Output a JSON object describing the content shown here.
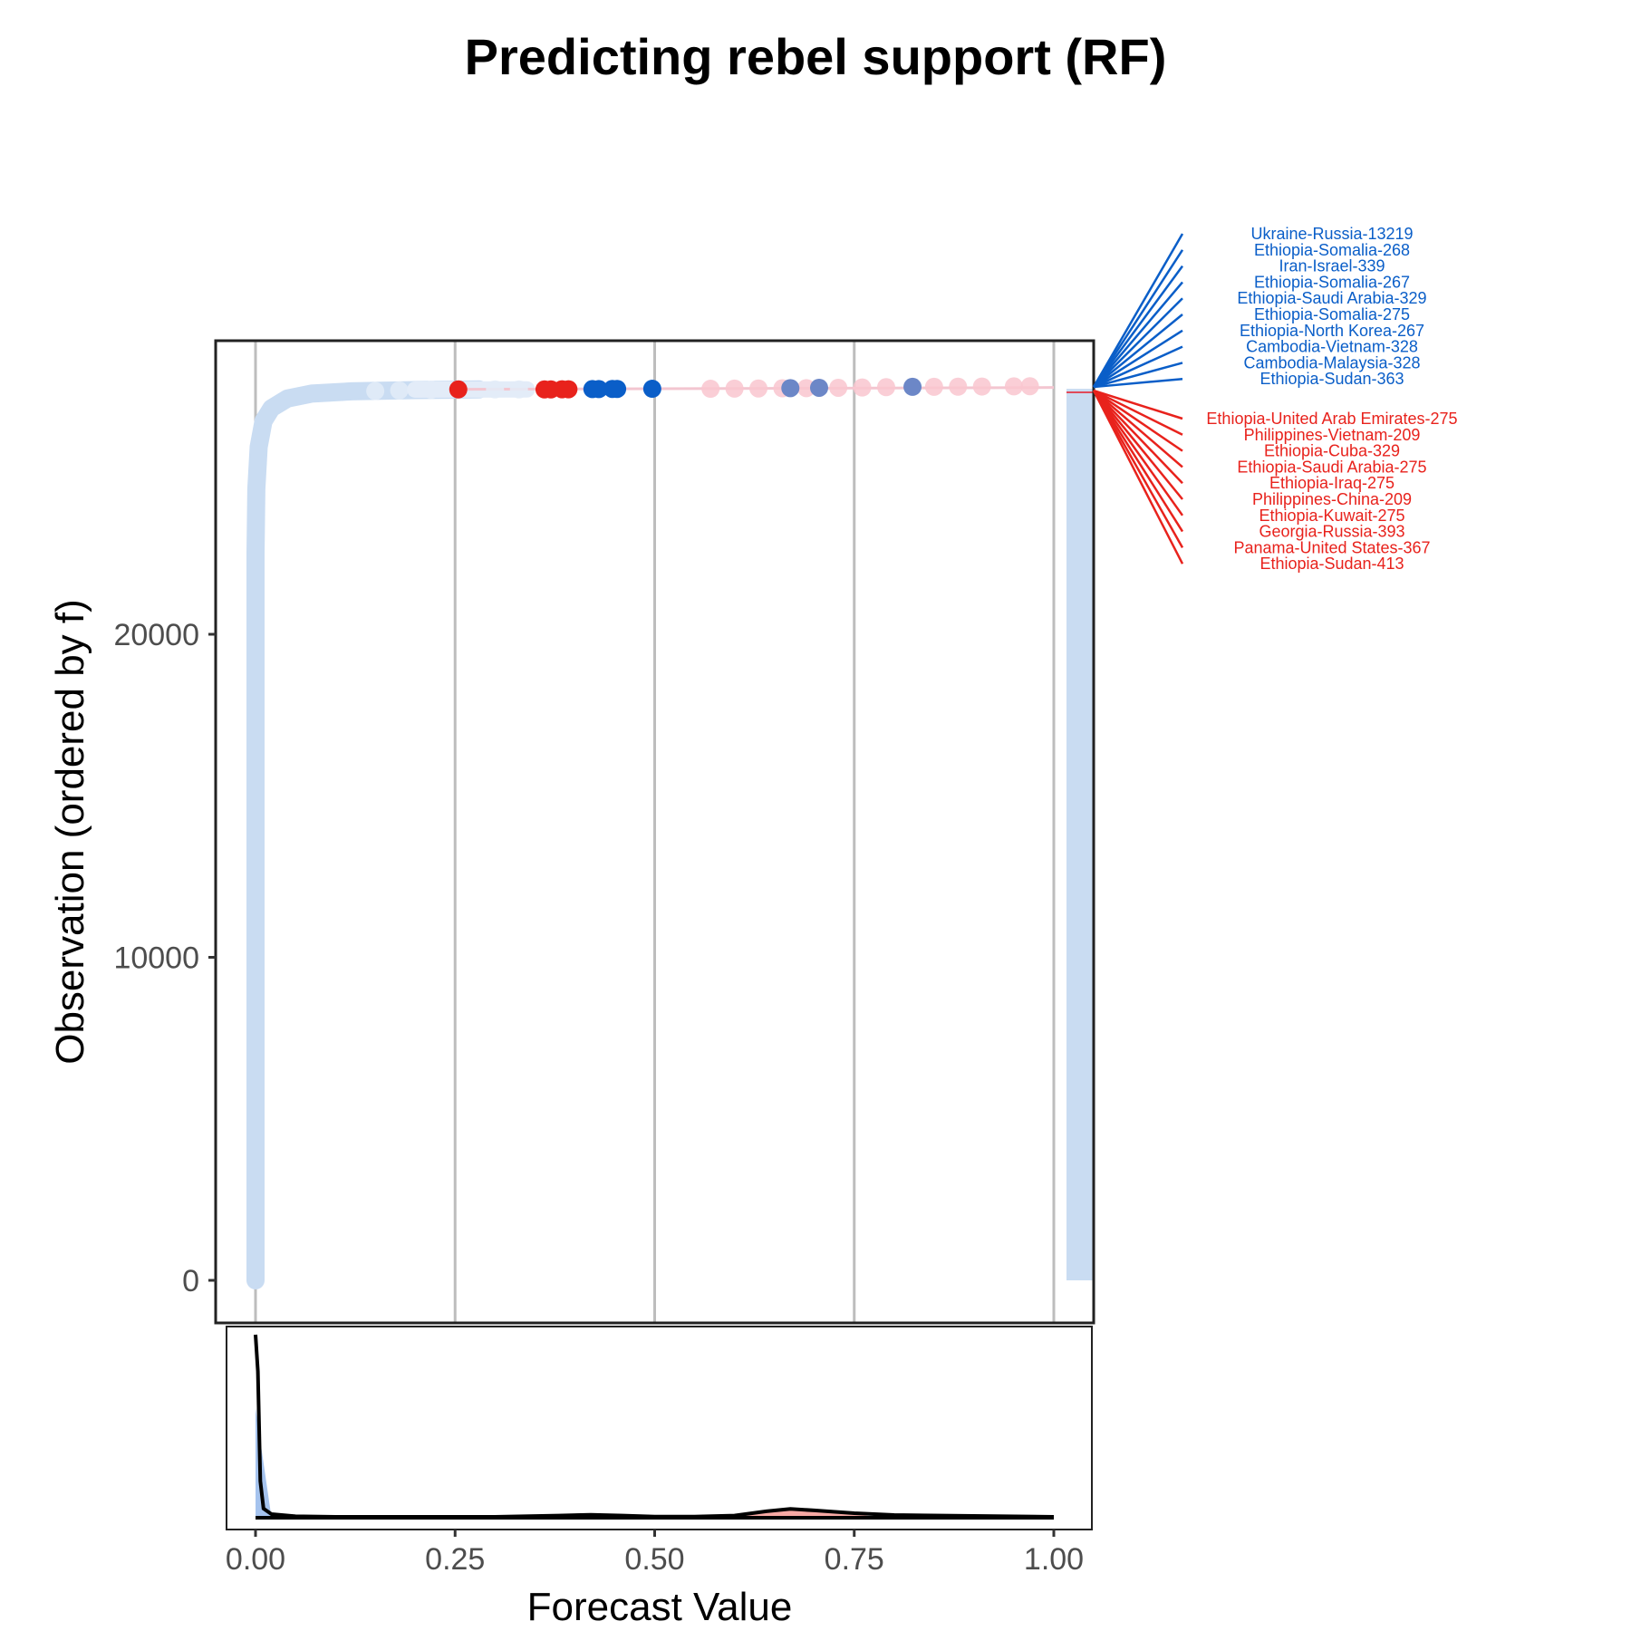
{
  "chart_data": {
    "type": "scatter",
    "title": "Predicting rebel support (RF)",
    "xlabel": "Forecast Value",
    "ylabel": "Observation (ordered by f)",
    "xlim": [
      -0.05,
      1.05
    ],
    "ylim": [
      -1300,
      29000
    ],
    "x_ticks": [
      "0.00",
      "0.25",
      "0.50",
      "0.75",
      "1.00"
    ],
    "x_tick_values": [
      0,
      0.25,
      0.5,
      0.75,
      1.0
    ],
    "y_ticks": [
      "0",
      "10000",
      "20000"
    ],
    "y_tick_values": [
      0,
      10000,
      20000
    ],
    "grid": "vertical",
    "colors": {
      "bulk": "#c9dcf2",
      "bulk_light": "#e3ecf8",
      "event_one": "#e8221c",
      "event_one_light": "#f9c6cf",
      "event_zero": "#0a5ec8",
      "event_zero_mid": "#6c87c7",
      "density_line": "#000000",
      "density_fill_red": "#f7a09a",
      "density_fill_blue": "#8eb4ea"
    },
    "curve": [
      {
        "f": 0.0,
        "obs": 0
      },
      {
        "f": 0.0,
        "obs": 22500
      },
      {
        "f": 0.001,
        "obs": 24500
      },
      {
        "f": 0.004,
        "obs": 25800
      },
      {
        "f": 0.01,
        "obs": 26600
      },
      {
        "f": 0.02,
        "obs": 27000
      },
      {
        "f": 0.04,
        "obs": 27300
      },
      {
        "f": 0.07,
        "obs": 27450
      },
      {
        "f": 0.12,
        "obs": 27520
      },
      {
        "f": 0.2,
        "obs": 27560
      },
      {
        "f": 0.28,
        "obs": 27580
      }
    ],
    "highlighted_points": [
      {
        "f": 0.254,
        "obs": 27580,
        "class": "1"
      },
      {
        "f": 0.362,
        "obs": 27580,
        "class": "1"
      },
      {
        "f": 0.37,
        "obs": 27580,
        "class": "1"
      },
      {
        "f": 0.384,
        "obs": 27585,
        "class": "1"
      },
      {
        "f": 0.392,
        "obs": 27585,
        "class": "1"
      },
      {
        "f": 0.422,
        "obs": 27590,
        "class": "0"
      },
      {
        "f": 0.43,
        "obs": 27590,
        "class": "0"
      },
      {
        "f": 0.447,
        "obs": 27595,
        "class": "0"
      },
      {
        "f": 0.453,
        "obs": 27595,
        "class": "0"
      },
      {
        "f": 0.497,
        "obs": 27600,
        "class": "0"
      },
      {
        "f": 0.67,
        "obs": 27620,
        "class": "0"
      },
      {
        "f": 0.706,
        "obs": 27630,
        "class": "0"
      },
      {
        "f": 0.823,
        "obs": 27660,
        "class": "0"
      }
    ],
    "faint_points": [
      {
        "f": 0.57,
        "obs": 27600,
        "class": "1"
      },
      {
        "f": 0.6,
        "obs": 27605,
        "class": "1"
      },
      {
        "f": 0.63,
        "obs": 27610,
        "class": "1"
      },
      {
        "f": 0.66,
        "obs": 27615,
        "class": "1"
      },
      {
        "f": 0.69,
        "obs": 27620,
        "class": "1"
      },
      {
        "f": 0.73,
        "obs": 27630,
        "class": "1"
      },
      {
        "f": 0.76,
        "obs": 27640,
        "class": "1"
      },
      {
        "f": 0.79,
        "obs": 27650,
        "class": "1"
      },
      {
        "f": 0.85,
        "obs": 27660,
        "class": "1"
      },
      {
        "f": 0.88,
        "obs": 27665,
        "class": "1"
      },
      {
        "f": 0.91,
        "obs": 27670,
        "class": "1"
      },
      {
        "f": 0.95,
        "obs": 27675,
        "class": "1"
      },
      {
        "f": 0.97,
        "obs": 27680,
        "class": "1"
      },
      {
        "f": 0.3,
        "obs": 27580,
        "class": "0"
      },
      {
        "f": 0.33,
        "obs": 27580,
        "class": "0"
      },
      {
        "f": 0.15,
        "obs": 27530,
        "class": "0"
      },
      {
        "f": 0.18,
        "obs": 27550,
        "class": "0"
      },
      {
        "f": 0.22,
        "obs": 27570,
        "class": "0"
      }
    ],
    "right_bar": {
      "obs_from": 0,
      "obs_to": 27600
    },
    "labels_zero": [
      "Ukraine-Russia-13219",
      "Ethiopia-Somalia-268",
      "Iran-Israel-339",
      "Ethiopia-Somalia-267",
      "Ethiopia-Saudi Arabia-329",
      "Ethiopia-Somalia-275",
      "Ethiopia-North Korea-267",
      "Cambodia-Vietnam-328",
      "Cambodia-Malaysia-328",
      "Ethiopia-Sudan-363"
    ],
    "labels_one": [
      "Ethiopia-United Arab Emirates-275",
      "Philippines-Vietnam-209",
      "Ethiopia-Cuba-329",
      "Ethiopia-Saudi Arabia-275",
      "Ethiopia-Iraq-275",
      "Philippines-China-209",
      "Ethiopia-Kuwait-275",
      "Georgia-Russia-393",
      "Panama-United States-367",
      "Ethiopia-Sudan-413"
    ],
    "density": {
      "x": [
        0,
        0.003,
        0.006,
        0.01,
        0.02,
        0.05,
        0.1,
        0.2,
        0.3,
        0.38,
        0.42,
        0.46,
        0.5,
        0.55,
        0.6,
        0.64,
        0.67,
        0.7,
        0.75,
        0.8,
        0.9,
        1.0
      ],
      "y": [
        1.0,
        0.8,
        0.2,
        0.05,
        0.02,
        0.008,
        0.005,
        0.005,
        0.005,
        0.012,
        0.016,
        0.012,
        0.006,
        0.006,
        0.012,
        0.035,
        0.048,
        0.04,
        0.025,
        0.015,
        0.01,
        0.005
      ],
      "red_fill": {
        "from": 0.6,
        "to": 0.78,
        "peak": 0.045
      },
      "blue_fill": {
        "from": 0.0,
        "to": 0.02,
        "peak": 1.0
      }
    }
  }
}
